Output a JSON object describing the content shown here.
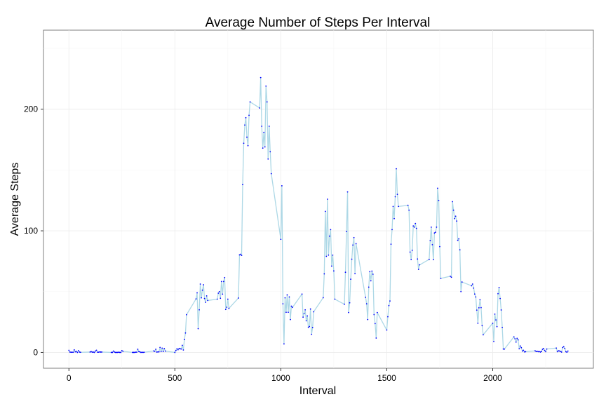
{
  "chart_data": {
    "type": "line",
    "title": "Average Number of Steps Per Interval",
    "xlabel": "Interval",
    "ylabel": "Average Steps",
    "xlim": [
      -120,
      2475
    ],
    "ylim": [
      -13,
      265
    ],
    "x_ticks": [
      0,
      500,
      1000,
      1500,
      2000
    ],
    "x_tick_labels": [
      "0",
      "500",
      "1000",
      "1500",
      "2000"
    ],
    "y_ticks": [
      0,
      100,
      200
    ],
    "y_tick_labels": [
      "0",
      "100",
      "200"
    ],
    "grid": true,
    "line_color": "#add8e6",
    "point_color": "#0000ff",
    "series": [
      {
        "x": [
          0,
          5,
          10,
          15,
          20,
          25,
          30,
          35,
          40,
          45,
          50,
          55,
          100,
          105,
          110,
          115,
          120,
          125,
          130,
          135,
          140,
          145,
          150,
          155,
          200,
          205,
          210,
          215,
          220,
          225,
          230,
          235,
          240,
          245,
          250,
          255,
          300,
          305,
          310,
          315,
          320,
          325,
          330,
          335,
          340,
          345,
          350,
          355,
          400,
          405,
          410,
          415,
          420,
          425,
          430,
          435,
          440,
          445,
          450,
          455,
          500,
          505,
          510,
          515,
          520,
          525,
          530,
          535,
          540,
          545,
          550,
          555,
          600,
          605,
          610,
          615,
          620,
          625,
          630,
          635,
          640,
          645,
          650,
          655,
          700,
          705,
          710,
          715,
          720,
          725,
          730,
          735,
          740,
          745,
          750,
          755,
          800,
          805,
          810,
          815,
          820,
          825,
          830,
          835,
          840,
          845,
          850,
          855,
          900,
          905,
          910,
          915,
          920,
          925,
          930,
          935,
          940,
          945,
          950,
          955,
          1000,
          1005,
          1010,
          1015,
          1020,
          1025,
          1030,
          1035,
          1040,
          1045,
          1050,
          1055,
          1100,
          1105,
          1110,
          1115,
          1120,
          1125,
          1130,
          1135,
          1140,
          1145,
          1150,
          1155,
          1200,
          1205,
          1210,
          1215,
          1220,
          1225,
          1230,
          1235,
          1240,
          1245,
          1250,
          1255,
          1300,
          1305,
          1310,
          1315,
          1320,
          1325,
          1330,
          1335,
          1340,
          1345,
          1350,
          1355,
          1400,
          1405,
          1410,
          1415,
          1420,
          1425,
          1430,
          1435,
          1440,
          1445,
          1450,
          1455,
          1500,
          1505,
          1510,
          1515,
          1520,
          1525,
          1530,
          1535,
          1540,
          1545,
          1550,
          1555,
          1600,
          1605,
          1610,
          1615,
          1620,
          1625,
          1630,
          1635,
          1640,
          1645,
          1650,
          1655,
          1700,
          1705,
          1710,
          1715,
          1720,
          1725,
          1730,
          1735,
          1740,
          1745,
          1750,
          1755,
          1800,
          1805,
          1810,
          1815,
          1820,
          1825,
          1830,
          1835,
          1840,
          1845,
          1850,
          1855,
          1900,
          1905,
          1910,
          1915,
          1920,
          1925,
          1930,
          1935,
          1940,
          1945,
          1950,
          1955,
          2000,
          2005,
          2010,
          2015,
          2020,
          2025,
          2030,
          2035,
          2040,
          2045,
          2050,
          2055,
          2100,
          2105,
          2110,
          2115,
          2120,
          2125,
          2130,
          2135,
          2140,
          2145,
          2150,
          2155,
          2200,
          2205,
          2210,
          2215,
          2220,
          2225,
          2230,
          2235,
          2240,
          2245,
          2250,
          2255,
          2300,
          2305,
          2310,
          2315,
          2320,
          2325,
          2330,
          2335,
          2340,
          2345,
          2350,
          2355
        ],
        "y": [
          1.7,
          0.3,
          0.1,
          0.2,
          0.1,
          2.1,
          0.5,
          0.9,
          0.0,
          1.5,
          0.3,
          0.1,
          0.3,
          0.7,
          0.2,
          0.3,
          0.0,
          1.1,
          1.8,
          0.2,
          0.2,
          0.4,
          0.3,
          0.3,
          0.0,
          0.0,
          1.1,
          0.3,
          0.0,
          0.0,
          0.0,
          0.2,
          0.0,
          0.0,
          1.5,
          0.9,
          0.0,
          0.0,
          0.0,
          0.2,
          0.2,
          2.6,
          0.7,
          0.4,
          0.0,
          0.1,
          0.0,
          0.1,
          1.2,
          0.9,
          2.6,
          0.3,
          0.4,
          0.5,
          4.1,
          0.7,
          3.5,
          0.8,
          3.1,
          1.1,
          0.0,
          1.6,
          3.0,
          2.2,
          3.3,
          3.0,
          2.8,
          5.8,
          2.0,
          10.6,
          16.0,
          31.0,
          44.0,
          49.0,
          19.5,
          35.0,
          56.2,
          44.9,
          51.2,
          55.6,
          44.3,
          41.2,
          46.5,
          42.7,
          43.8,
          48.7,
          50.0,
          44.5,
          58.3,
          47.9,
          58.3,
          61.5,
          35.3,
          37.2,
          43.8,
          36.2,
          44.7,
          80.2,
          80.7,
          79.8,
          138.0,
          172.0,
          187.0,
          193.0,
          177.0,
          170.0,
          195.0,
          206.0,
          201.0,
          226.0,
          186.0,
          168.0,
          181.0,
          169.0,
          219.0,
          206.0,
          159.0,
          186.0,
          165.0,
          147.0,
          93.0,
          137.0,
          40.0,
          7.0,
          44.9,
          33.0,
          47.3,
          33.0,
          45.6,
          27.0,
          38.0,
          37.0,
          48.0,
          29.0,
          32.0,
          35.0,
          26.0,
          30.0,
          20.6,
          21.3,
          35.7,
          14.9,
          20.5,
          33.4,
          45.0,
          64.6,
          116.0,
          79.0,
          126.0,
          80.0,
          95.6,
          101.0,
          71.0,
          80.0,
          67.0,
          43.8,
          39.6,
          65.9,
          99.4,
          132.0,
          32.8,
          40.8,
          60.2,
          76.7,
          88.3,
          94.4,
          64.8,
          89.4,
          45.3,
          40.0,
          27.0,
          53.7,
          66.4,
          58.9,
          66.9,
          64.3,
          31.1,
          23.7,
          11.8,
          32.8,
          18.4,
          29.3,
          38.5,
          42.3,
          89.0,
          101.0,
          120.0,
          110.0,
          128.0,
          151.0,
          130.0,
          120.0,
          121.0,
          117.0,
          82.5,
          76.4,
          84.0,
          104.0,
          103.0,
          106.0,
          102.0,
          76.8,
          68.3,
          72.0,
          76.5,
          92.0,
          103.0,
          88.6,
          76.3,
          98.2,
          98.8,
          103.0,
          135.0,
          125.0,
          87.0,
          60.9,
          62.6,
          61.8,
          124.0,
          117.0,
          110.0,
          112.0,
          108.0,
          92.2,
          93.4,
          84.4,
          50.0,
          57.9,
          54.8,
          56.2,
          52.9,
          48.0,
          45.6,
          34.8,
          24.0,
          36.7,
          43.3,
          36.8,
          22.0,
          14.5,
          24.0,
          9.0,
          31.5,
          26.7,
          21.2,
          48.3,
          53.4,
          44.3,
          34.9,
          20.6,
          2.8,
          2.7,
          12.8,
          11.2,
          8.5,
          11.6,
          10.3,
          3.0,
          5.3,
          3.9,
          1.1,
          1.8,
          0.4,
          0.6,
          1.3,
          0.7,
          0.9,
          0.6,
          0.7,
          0.3,
          0.8,
          2.6,
          3.2,
          1.6,
          0.6,
          2.8,
          3.6,
          0.6,
          1.3,
          1.2,
          0.7,
          0.3,
          4.0,
          4.7,
          3.3,
          0.6,
          0.2,
          1.1
        ]
      }
    ]
  }
}
